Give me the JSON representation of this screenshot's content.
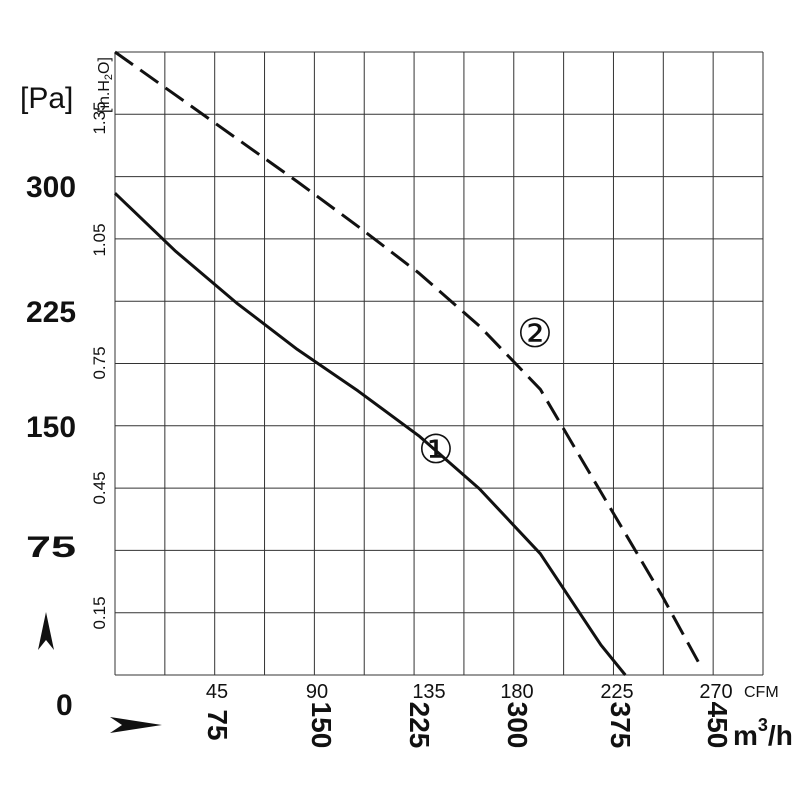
{
  "chart_data": {
    "type": "line",
    "x_axis_primary": {
      "unit": "m³/h",
      "unit_base": "m",
      "unit_sup": "3",
      "unit_tail": "/h",
      "ticks": [
        "75",
        "150",
        "225",
        "300",
        "375",
        "450"
      ],
      "range": [
        0,
        480
      ]
    },
    "x_axis_secondary": {
      "unit": "CFM",
      "ticks": [
        "45",
        "90",
        "135",
        "180",
        "225",
        "270"
      ]
    },
    "y_axis_primary": {
      "unit": "[Pa]",
      "ticks": [
        "300",
        "225",
        "150",
        "75"
      ],
      "zero_label": "0",
      "range": [
        0,
        375
      ]
    },
    "y_axis_secondary": {
      "unit": "[in.H₂O]",
      "unit_prefix": "[in.H",
      "unit_sub": "2",
      "unit_suffix": "O]",
      "ticks": [
        "1.35",
        "1.05",
        "0.75",
        "0.45",
        "0.15"
      ]
    },
    "grid": true,
    "series": [
      {
        "name": "①",
        "style": "solid",
        "points": [
          [
            0,
            290
          ],
          [
            45,
            255
          ],
          [
            90,
            224
          ],
          [
            135,
            196
          ],
          [
            180,
            171
          ],
          [
            225,
            144
          ],
          [
            270,
            112
          ],
          [
            315,
            73
          ],
          [
            360,
            18
          ],
          [
            378,
            0
          ]
        ]
      },
      {
        "name": "②",
        "style": "dashed",
        "points": [
          [
            0,
            375
          ],
          [
            45,
            349
          ],
          [
            90,
            323
          ],
          [
            135,
            297
          ],
          [
            180,
            270
          ],
          [
            225,
            242
          ],
          [
            270,
            210
          ],
          [
            315,
            172
          ],
          [
            360,
            110
          ],
          [
            405,
            48
          ],
          [
            432,
            8
          ]
        ]
      }
    ]
  },
  "icons": {
    "y_arrow": "up-arrowhead-icon",
    "x_arrow": "right-arrowhead-icon"
  }
}
